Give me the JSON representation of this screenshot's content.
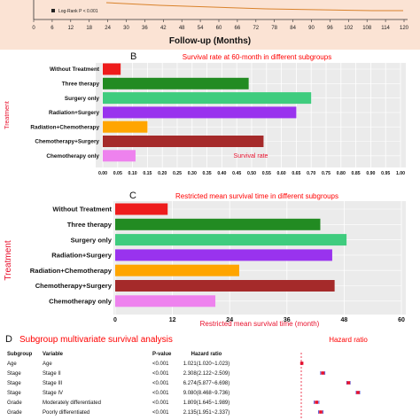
{
  "top_panel": {
    "legend_text": "Log-Rank P < 0.001",
    "xlabel": "Follow-up (Months)",
    "xticks": [
      0,
      6,
      12,
      18,
      24,
      30,
      36,
      42,
      48,
      54,
      60,
      66,
      72,
      78,
      84,
      90,
      96,
      102,
      108,
      114,
      120
    ]
  },
  "chart_data": [
    {
      "type": "bar",
      "panel_letter": "B",
      "title": "Survival rate at 60-month in different subgroups",
      "xlabel": "Survival rate",
      "ylabel": "Treatment",
      "xlim": [
        0,
        1.0
      ],
      "xticks": [
        "0.00",
        "0.05",
        "0.10",
        "0.15",
        "0.20",
        "0.25",
        "0.30",
        "0.35",
        "0.40",
        "0.45",
        "0.50",
        "0.55",
        "0.60",
        "0.65",
        "0.70",
        "0.75",
        "0.80",
        "0.85",
        "0.90",
        "0.95",
        "1.00"
      ],
      "grid": true,
      "categories": [
        "Without Treatment",
        "Three therapy",
        "Surgery only",
        "Radiation+Surgery",
        "Radiation+Chemotherapy",
        "Chemotherapy+Surgery",
        "Chemotherapy only"
      ],
      "values": [
        0.06,
        0.49,
        0.7,
        0.65,
        0.15,
        0.54,
        0.11
      ],
      "colors": [
        "#ee1c1c",
        "#228b22",
        "#3fcc7e",
        "#9933ee",
        "#ffa500",
        "#a52a2a",
        "#ee82ee"
      ]
    },
    {
      "type": "bar",
      "panel_letter": "C",
      "title": "Restricted mean survival time in different subgroups",
      "xlabel": "Restricted mean survival time (month)",
      "ylabel": "Treatment",
      "xlim": [
        0,
        60
      ],
      "xticks": [
        "0",
        "12",
        "24",
        "36",
        "48",
        "60"
      ],
      "grid": true,
      "categories": [
        "Without Treatment",
        "Three therapy",
        "Surgery only",
        "Radiation+Surgery",
        "Radiation+Chemotherapy",
        "Chemotherapy+Surgery",
        "Chemotherapy only"
      ],
      "values": [
        11,
        43,
        48.5,
        45.5,
        26,
        46,
        21
      ],
      "colors": [
        "#ee1c1c",
        "#228b22",
        "#3fcc7e",
        "#9933ee",
        "#ffa500",
        "#a52a2a",
        "#ee82ee"
      ]
    }
  ],
  "forest": {
    "panel_letter": "D",
    "title": "Subgroup multivariate survival analysis",
    "hr_title": "Hazard ratio",
    "headers": {
      "subgroup": "Subgroup",
      "variable": "Variable",
      "pvalue": "P-value",
      "hr": "Hazard ratio"
    },
    "rows": [
      {
        "subgroup": "Age",
        "variable": "Age",
        "pvalue": "<0.001",
        "hr": "1.021(1.020~1.023)",
        "est": 1.021,
        "low": 1.02,
        "high": 1.023
      },
      {
        "subgroup": "Stage",
        "variable": "Stage II",
        "pvalue": "<0.001",
        "hr": "2.308(2.122~2.509)",
        "est": 2.308,
        "low": 2.122,
        "high": 2.509
      },
      {
        "subgroup": "Stage",
        "variable": "Stage III",
        "pvalue": "<0.001",
        "hr": "6.274(5.877~6.698)",
        "est": 6.274,
        "low": 5.877,
        "high": 6.698
      },
      {
        "subgroup": "Stage",
        "variable": "Stage IV",
        "pvalue": "<0.001",
        "hr": "9.080(8.468~9.736)",
        "est": 9.08,
        "low": 8.468,
        "high": 9.736
      },
      {
        "subgroup": "Grade",
        "variable": "Moderately differentiated",
        "pvalue": "<0.001",
        "hr": "1.809(1.645~1.989)",
        "est": 1.809,
        "low": 1.645,
        "high": 1.989
      },
      {
        "subgroup": "Grade",
        "variable": "Poorly differentiated",
        "pvalue": "<0.001",
        "hr": "2.135(1.951~2.337)",
        "est": 2.135,
        "low": 1.951,
        "high": 2.337
      }
    ],
    "point_color": "#e8112d",
    "line_color": "#4a4ad0"
  },
  "colors": {
    "top_panel_bg": "#fbe3d4",
    "title_red": "#ff0000",
    "plot_bg": "#ebebeb",
    "grid": "#ffffff",
    "axis_label_red": "#e8112d"
  }
}
